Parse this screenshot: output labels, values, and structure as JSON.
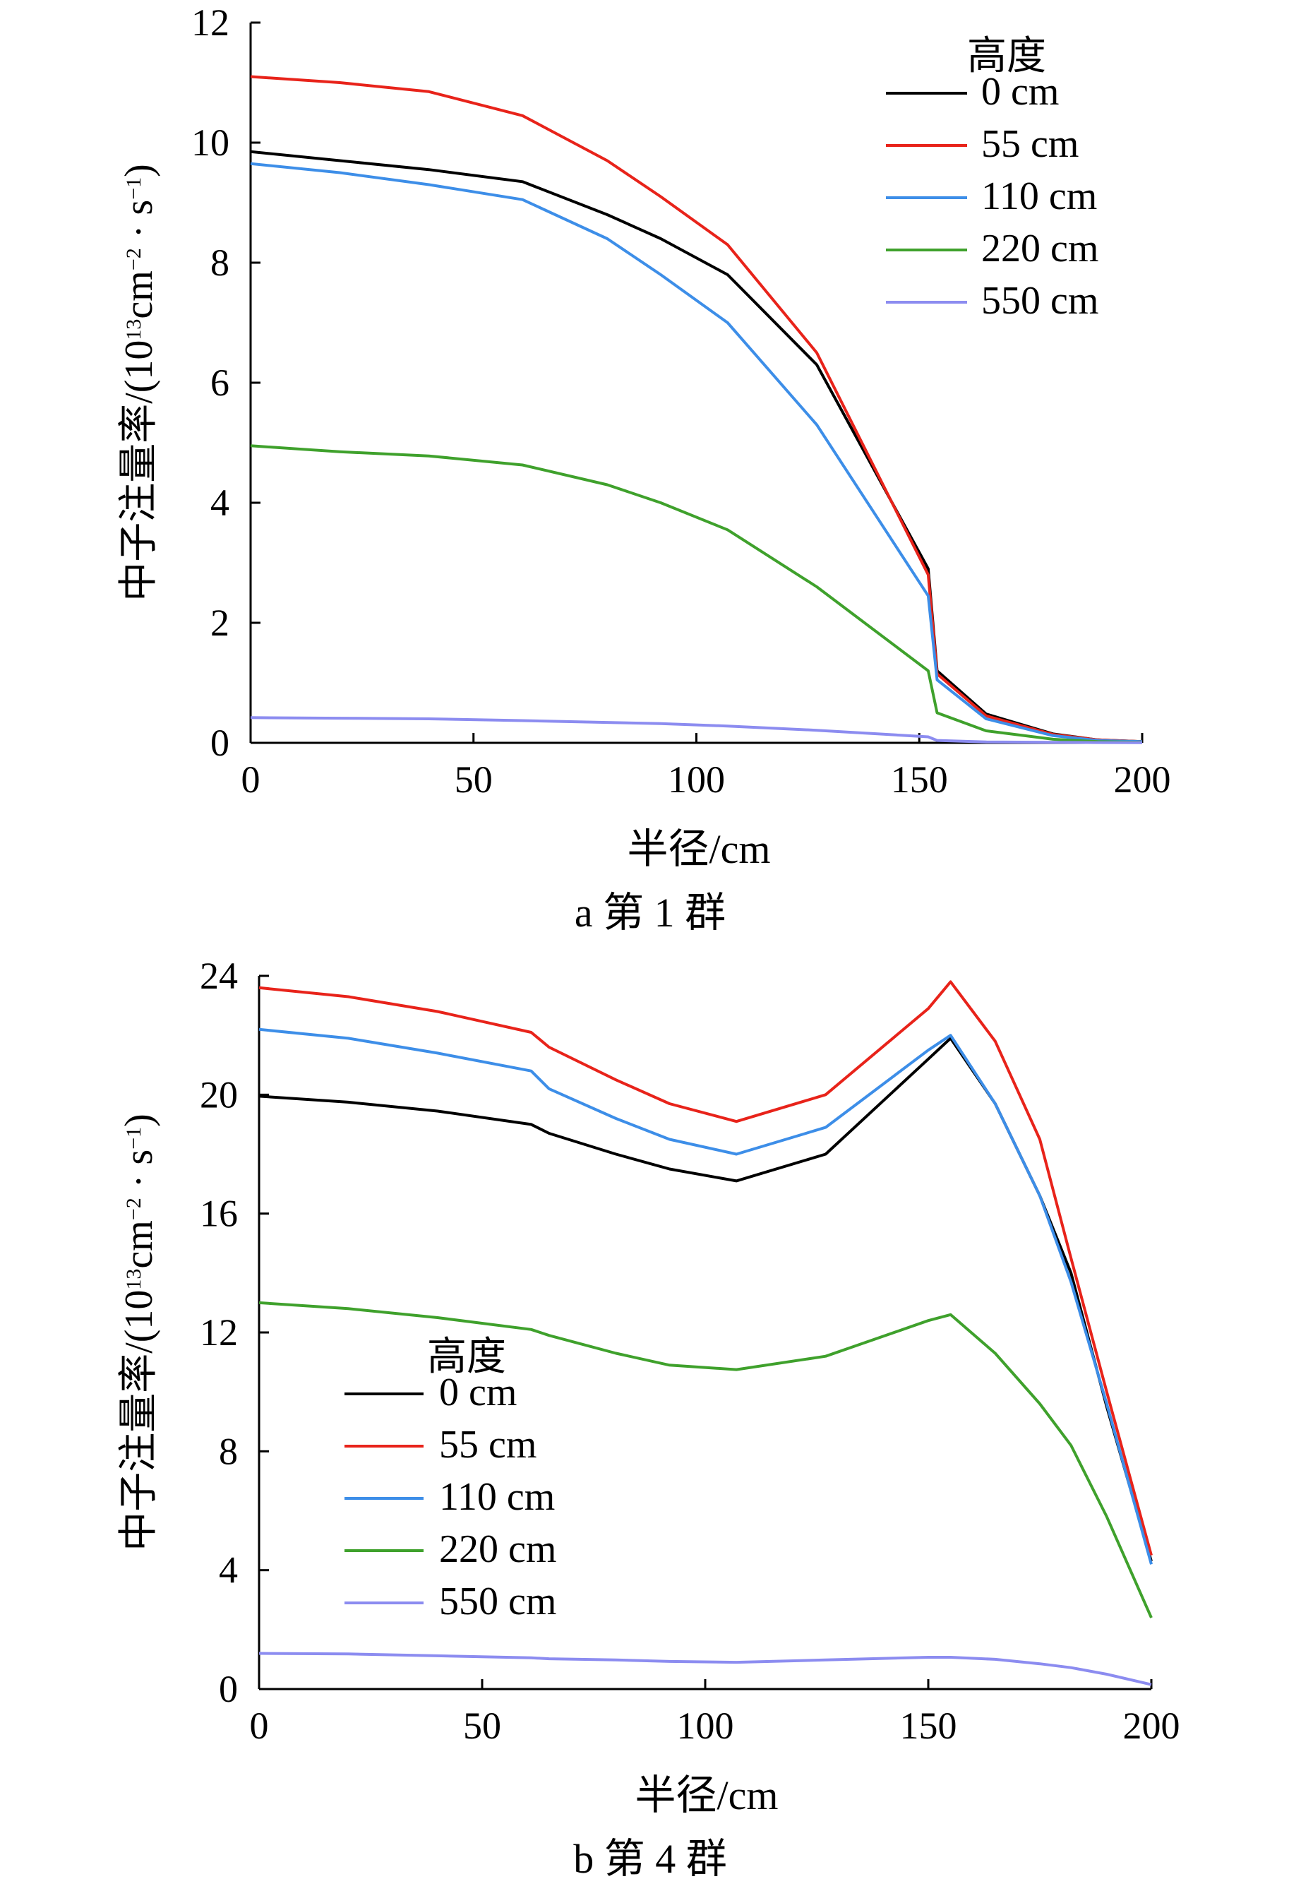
{
  "chart_data": [
    {
      "type": "line",
      "caption": "a 第 1 群",
      "xlabel": "半径/cm",
      "ylabel": "中子注量率/(10¹³cm⁻²·s⁻¹)",
      "ylabel_parts": {
        "main": "中子注量率/(10",
        "exp13": "13",
        "cm": "cm",
        "expm2": "−2",
        "dot": " · s",
        "expm1": "−1",
        "close": ")"
      },
      "xlim": [
        0,
        200
      ],
      "ylim": [
        0,
        12
      ],
      "xticks": [
        "0",
        "50",
        "100",
        "150",
        "200"
      ],
      "yticks": [
        "0",
        "2",
        "4",
        "6",
        "8",
        "10",
        "12"
      ],
      "legend_title": "高度",
      "legend_position": "top-right",
      "x": [
        0,
        20,
        40,
        61,
        80,
        92,
        107,
        127,
        152,
        154,
        165,
        180,
        190,
        200
      ],
      "series": [
        {
          "name": "0 cm",
          "color": "#000000",
          "values": [
            9.85,
            9.7,
            9.55,
            9.35,
            8.8,
            8.4,
            7.8,
            6.3,
            2.9,
            1.2,
            0.48,
            0.15,
            0.05,
            0.02
          ]
        },
        {
          "name": "55 cm",
          "color": "#e8231a",
          "values": [
            11.1,
            11.0,
            10.85,
            10.45,
            9.7,
            9.1,
            8.3,
            6.5,
            2.8,
            1.15,
            0.45,
            0.14,
            0.05,
            0.02
          ]
        },
        {
          "name": "110 cm",
          "color": "#3d8ee8",
          "values": [
            9.65,
            9.5,
            9.3,
            9.05,
            8.4,
            7.8,
            7.0,
            5.3,
            2.45,
            1.05,
            0.4,
            0.12,
            0.04,
            0.02
          ]
        },
        {
          "name": "220 cm",
          "color": "#3fa12c",
          "values": [
            4.95,
            4.85,
            4.78,
            4.63,
            4.3,
            4.0,
            3.55,
            2.6,
            1.2,
            0.5,
            0.2,
            0.06,
            0.02,
            0.01
          ]
        },
        {
          "name": "550 cm",
          "color": "#8c8cf0",
          "values": [
            0.42,
            0.41,
            0.4,
            0.37,
            0.34,
            0.32,
            0.28,
            0.21,
            0.1,
            0.04,
            0.015,
            0.01,
            0.005,
            0.003
          ]
        }
      ]
    },
    {
      "type": "line",
      "caption": "b 第 4 群",
      "xlabel": "半径/cm",
      "ylabel": "中子注量率/(10¹³cm⁻²·s⁻¹)",
      "ylabel_parts": {
        "main": "中子注量率/(10",
        "exp13": "13",
        "cm": "cm",
        "expm2": "−2",
        "dot": " · s",
        "expm1": "−1",
        "close": ")"
      },
      "xlim": [
        0,
        200
      ],
      "ylim": [
        0,
        24
      ],
      "xticks": [
        "0",
        "50",
        "100",
        "150",
        "200"
      ],
      "yticks": [
        "0",
        "4",
        "8",
        "12",
        "16",
        "20",
        "24"
      ],
      "legend_title": "高度",
      "legend_position": "bottom-left",
      "x": [
        0,
        20,
        40,
        61,
        65,
        80,
        92,
        107,
        127,
        150,
        155,
        165,
        175,
        182,
        190,
        200
      ],
      "series": [
        {
          "name": "0 cm",
          "color": "#000000",
          "values": [
            19.95,
            19.75,
            19.45,
            19.0,
            18.7,
            18.0,
            17.5,
            17.1,
            18.0,
            21.2,
            21.9,
            19.7,
            16.6,
            14.0,
            9.5,
            4.3
          ]
        },
        {
          "name": "55 cm",
          "color": "#e8231a",
          "values": [
            23.6,
            23.3,
            22.8,
            22.1,
            21.6,
            20.5,
            19.7,
            19.1,
            20.0,
            22.9,
            23.8,
            21.8,
            18.5,
            14.5,
            10.0,
            4.5
          ]
        },
        {
          "name": "110 cm",
          "color": "#3d8ee8",
          "values": [
            22.2,
            21.9,
            21.4,
            20.8,
            20.2,
            19.2,
            18.5,
            18.0,
            18.9,
            21.5,
            22.0,
            19.7,
            16.6,
            13.7,
            9.6,
            4.2
          ]
        },
        {
          "name": "220 cm",
          "color": "#3fa12c",
          "values": [
            13.0,
            12.8,
            12.5,
            12.1,
            11.9,
            11.3,
            10.9,
            10.75,
            11.2,
            12.4,
            12.6,
            11.3,
            9.6,
            8.2,
            5.8,
            2.4
          ]
        },
        {
          "name": "550 cm",
          "color": "#8c8cf0",
          "values": [
            1.2,
            1.18,
            1.12,
            1.05,
            1.02,
            0.98,
            0.93,
            0.9,
            0.98,
            1.07,
            1.07,
            1.0,
            0.85,
            0.72,
            0.5,
            0.15
          ]
        }
      ]
    }
  ]
}
